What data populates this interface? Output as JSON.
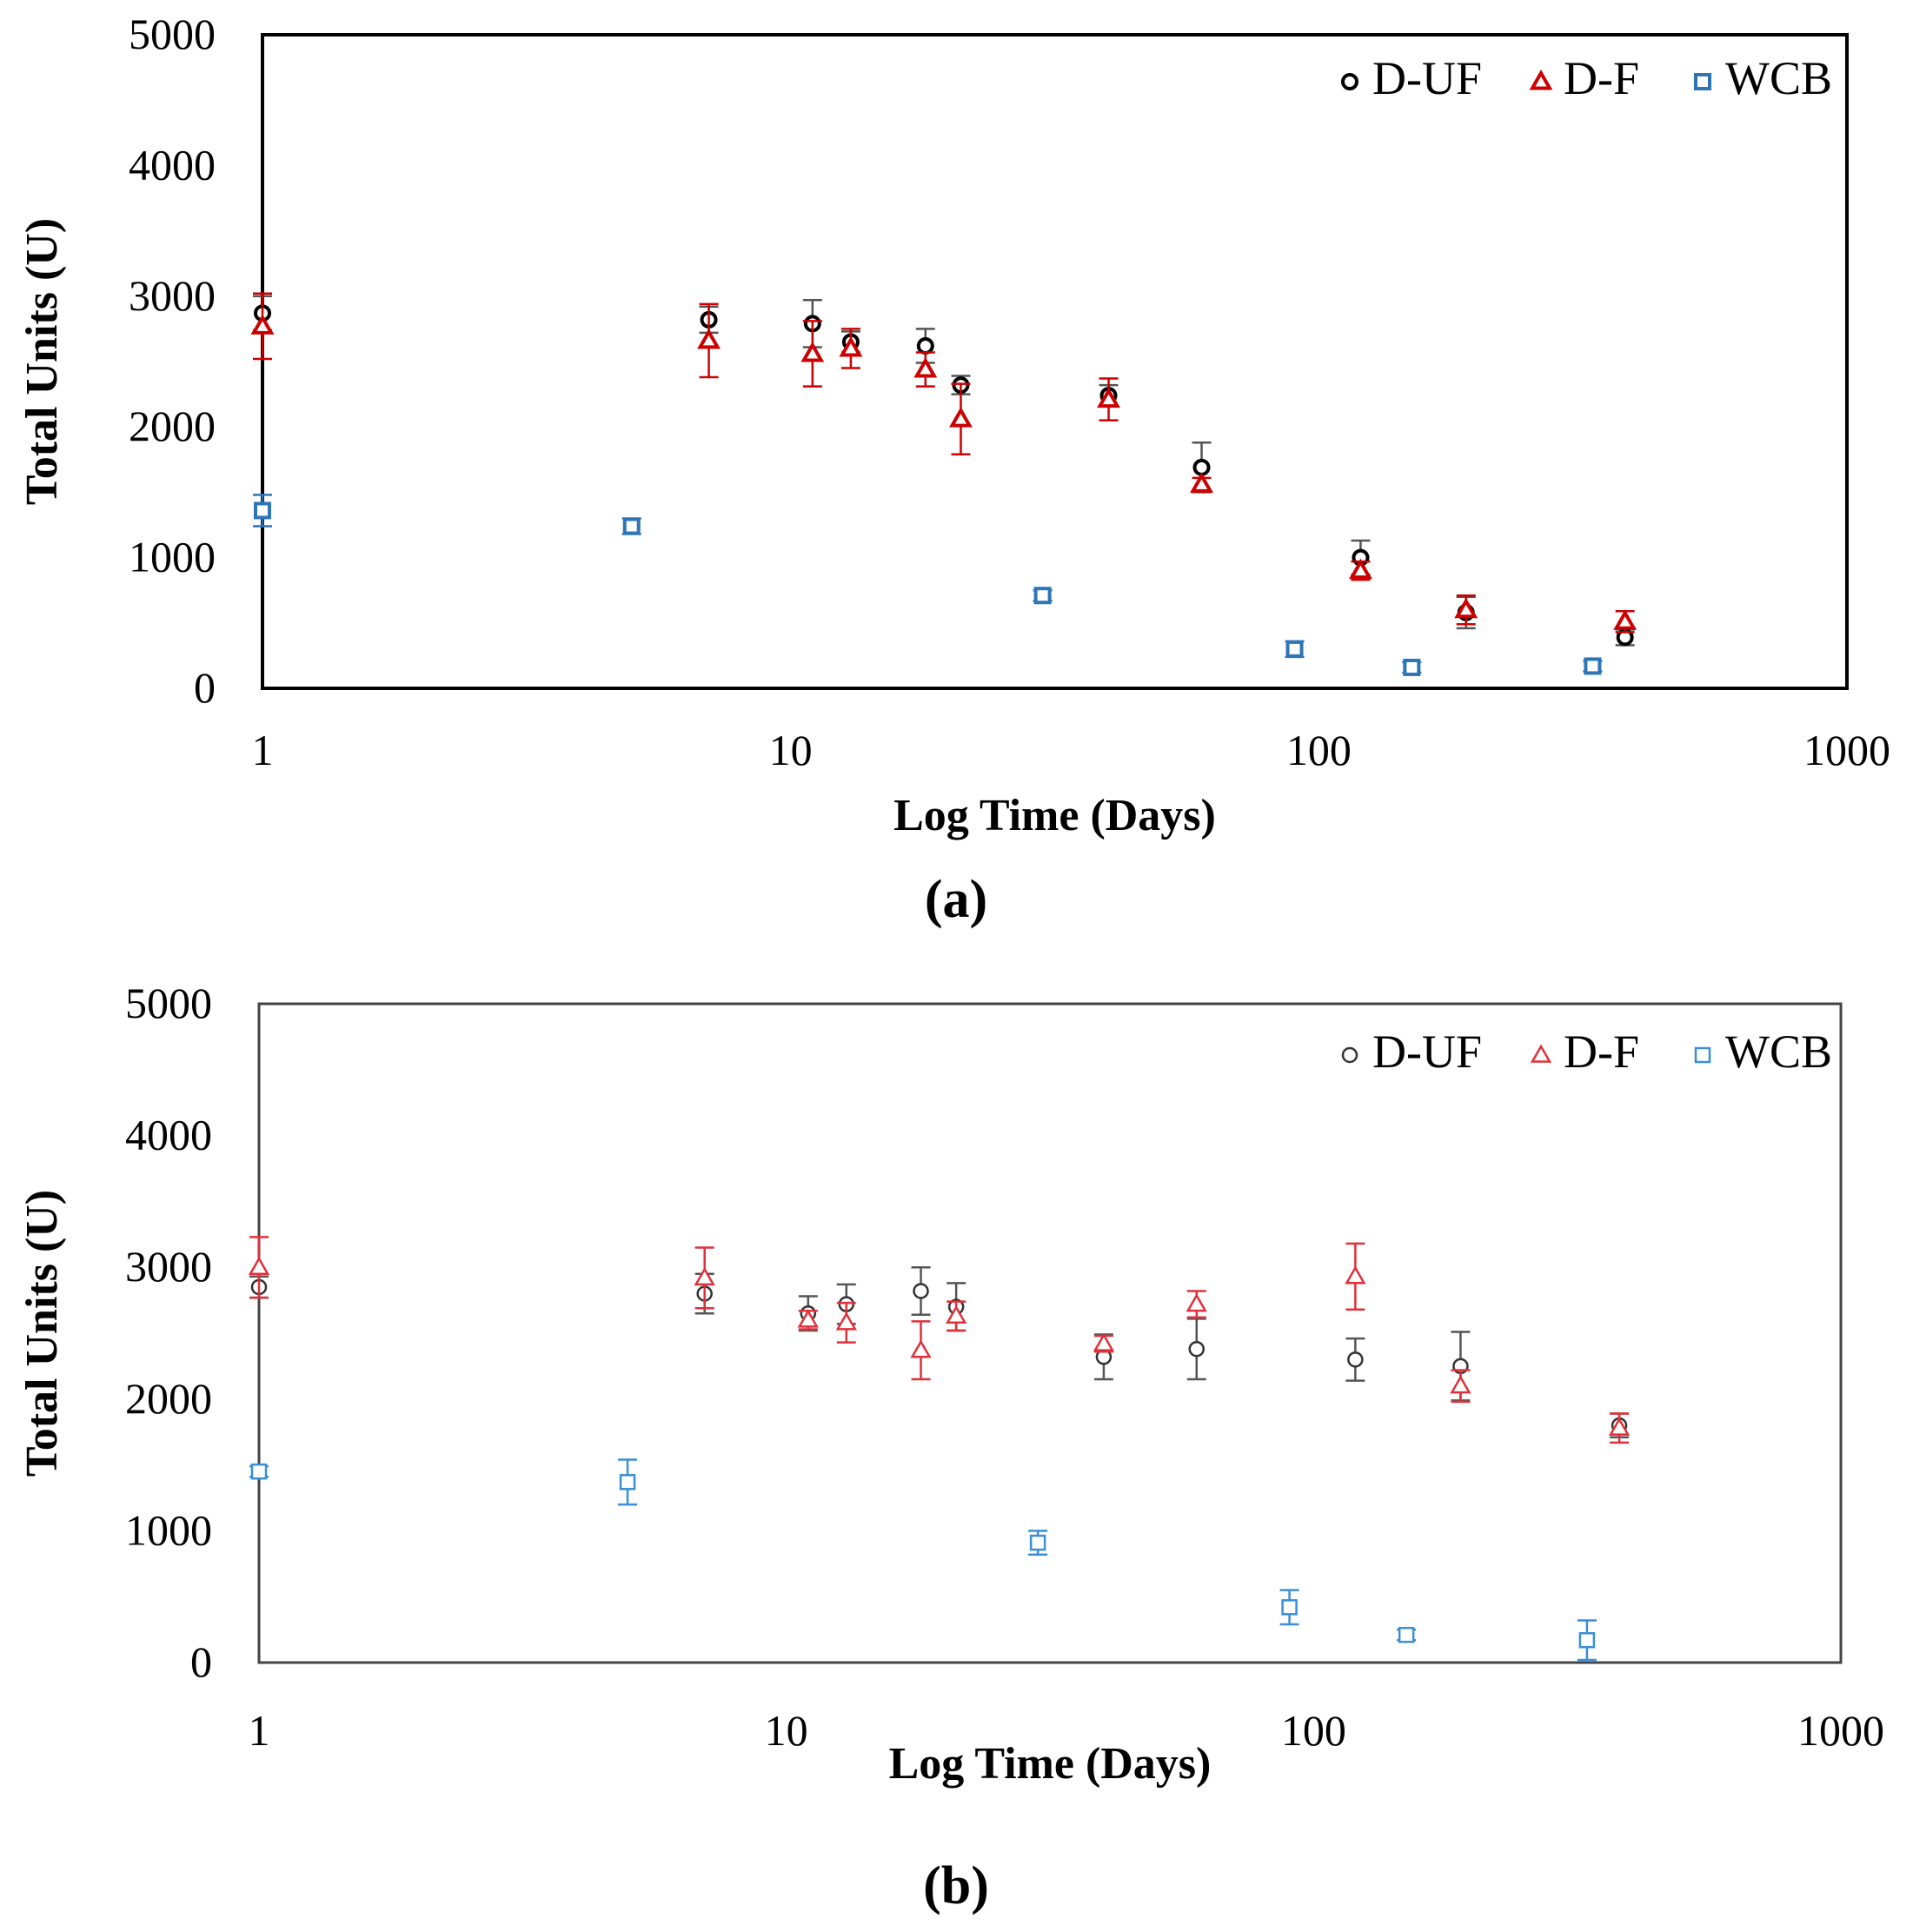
{
  "figure": {
    "panel_labels": [
      "(a)",
      "(b)"
    ]
  },
  "chart_data": [
    {
      "type": "scatter",
      "panel": "(a)",
      "title": "",
      "xlabel": "Log Time (Days)",
      "ylabel": "Total Units (U)",
      "xscale": "log",
      "xlim": [
        1,
        1000
      ],
      "ylim": [
        0,
        5000
      ],
      "xticks": [
        1,
        10,
        100,
        1000
      ],
      "xtick_labels": [
        "1",
        "10",
        "100",
        "1000"
      ],
      "yticks": [
        0,
        1000,
        2000,
        3000,
        4000,
        5000
      ],
      "ytick_labels": [
        "0",
        "1000",
        "2000",
        "3000",
        "4000",
        "5000"
      ],
      "legend_position": "top-right",
      "series": [
        {
          "name": "D-UF",
          "marker": "circle",
          "color": "#000000",
          "error_color": "#555555",
          "x": [
            1,
            7,
            11,
            13,
            18,
            21,
            40,
            60,
            120,
            190,
            380
          ],
          "y": [
            2870,
            2820,
            2790,
            2650,
            2620,
            2320,
            2240,
            1690,
            1000,
            580,
            390
          ],
          "err": [
            130,
            100,
            180,
            80,
            130,
            70,
            80,
            190,
            130,
            120,
            60
          ]
        },
        {
          "name": "D-F",
          "marker": "triangle",
          "color": "#cc0000",
          "error_color": "#cc0000",
          "x": [
            1,
            7,
            11,
            13,
            18,
            21,
            40,
            60,
            120,
            190,
            380
          ],
          "y": [
            2770,
            2660,
            2560,
            2600,
            2440,
            2060,
            2210,
            1560,
            900,
            600,
            510
          ],
          "err": [
            250,
            280,
            250,
            150,
            130,
            270,
            160,
            50,
            70,
            110,
            80
          ]
        },
        {
          "name": "WCB",
          "marker": "square",
          "color": "#2e75b6",
          "error_color": "#2e75b6",
          "x": [
            1,
            5,
            30,
            90,
            150,
            330
          ],
          "y": [
            1360,
            1240,
            710,
            300,
            160,
            170
          ],
          "err": [
            120,
            60,
            40,
            60,
            40,
            40
          ]
        }
      ]
    },
    {
      "type": "scatter",
      "panel": "(b)",
      "title": "",
      "xlabel": "Log Time (Days)",
      "ylabel": "Total Units (U)",
      "xscale": "log",
      "xlim": [
        1,
        1000
      ],
      "ylim": [
        0,
        5000
      ],
      "xticks": [
        1,
        10,
        100,
        1000
      ],
      "xtick_labels": [
        "1",
        "10",
        "100",
        "1000"
      ],
      "yticks": [
        0,
        1000,
        2000,
        3000,
        4000,
        5000
      ],
      "ytick_labels": [
        "0",
        "1000",
        "2000",
        "3000",
        "4000",
        "5000"
      ],
      "legend_position": "top-right",
      "series": [
        {
          "name": "D-UF",
          "marker": "circle",
          "color": "#333333",
          "error_color": "#555555",
          "x": [
            1,
            7,
            11,
            13,
            18,
            21,
            40,
            60,
            120,
            190,
            380
          ],
          "y": [
            2850,
            2800,
            2650,
            2720,
            2820,
            2700,
            2320,
            2380,
            2300,
            2250,
            1800
          ],
          "err": [
            80,
            150,
            130,
            150,
            180,
            180,
            170,
            230,
            160,
            260,
            90
          ]
        },
        {
          "name": "D-F",
          "marker": "triangle",
          "color": "#e0303a",
          "error_color": "#e0303a",
          "x": [
            1,
            7,
            11,
            13,
            18,
            21,
            40,
            60,
            120,
            190,
            380
          ],
          "y": [
            3000,
            2920,
            2600,
            2580,
            2370,
            2630,
            2420,
            2720,
            2930,
            2100,
            1780
          ],
          "err": [
            230,
            230,
            70,
            150,
            220,
            110,
            60,
            100,
            250,
            120,
            110
          ]
        },
        {
          "name": "WCB",
          "marker": "square",
          "color": "#3a8fd6",
          "error_color": "#3a8fd6",
          "x": [
            1,
            5,
            30,
            90,
            150,
            330
          ],
          "y": [
            1450,
            1370,
            910,
            420,
            210,
            170
          ],
          "err": [
            40,
            170,
            90,
            130,
            40,
            150
          ]
        }
      ]
    }
  ]
}
